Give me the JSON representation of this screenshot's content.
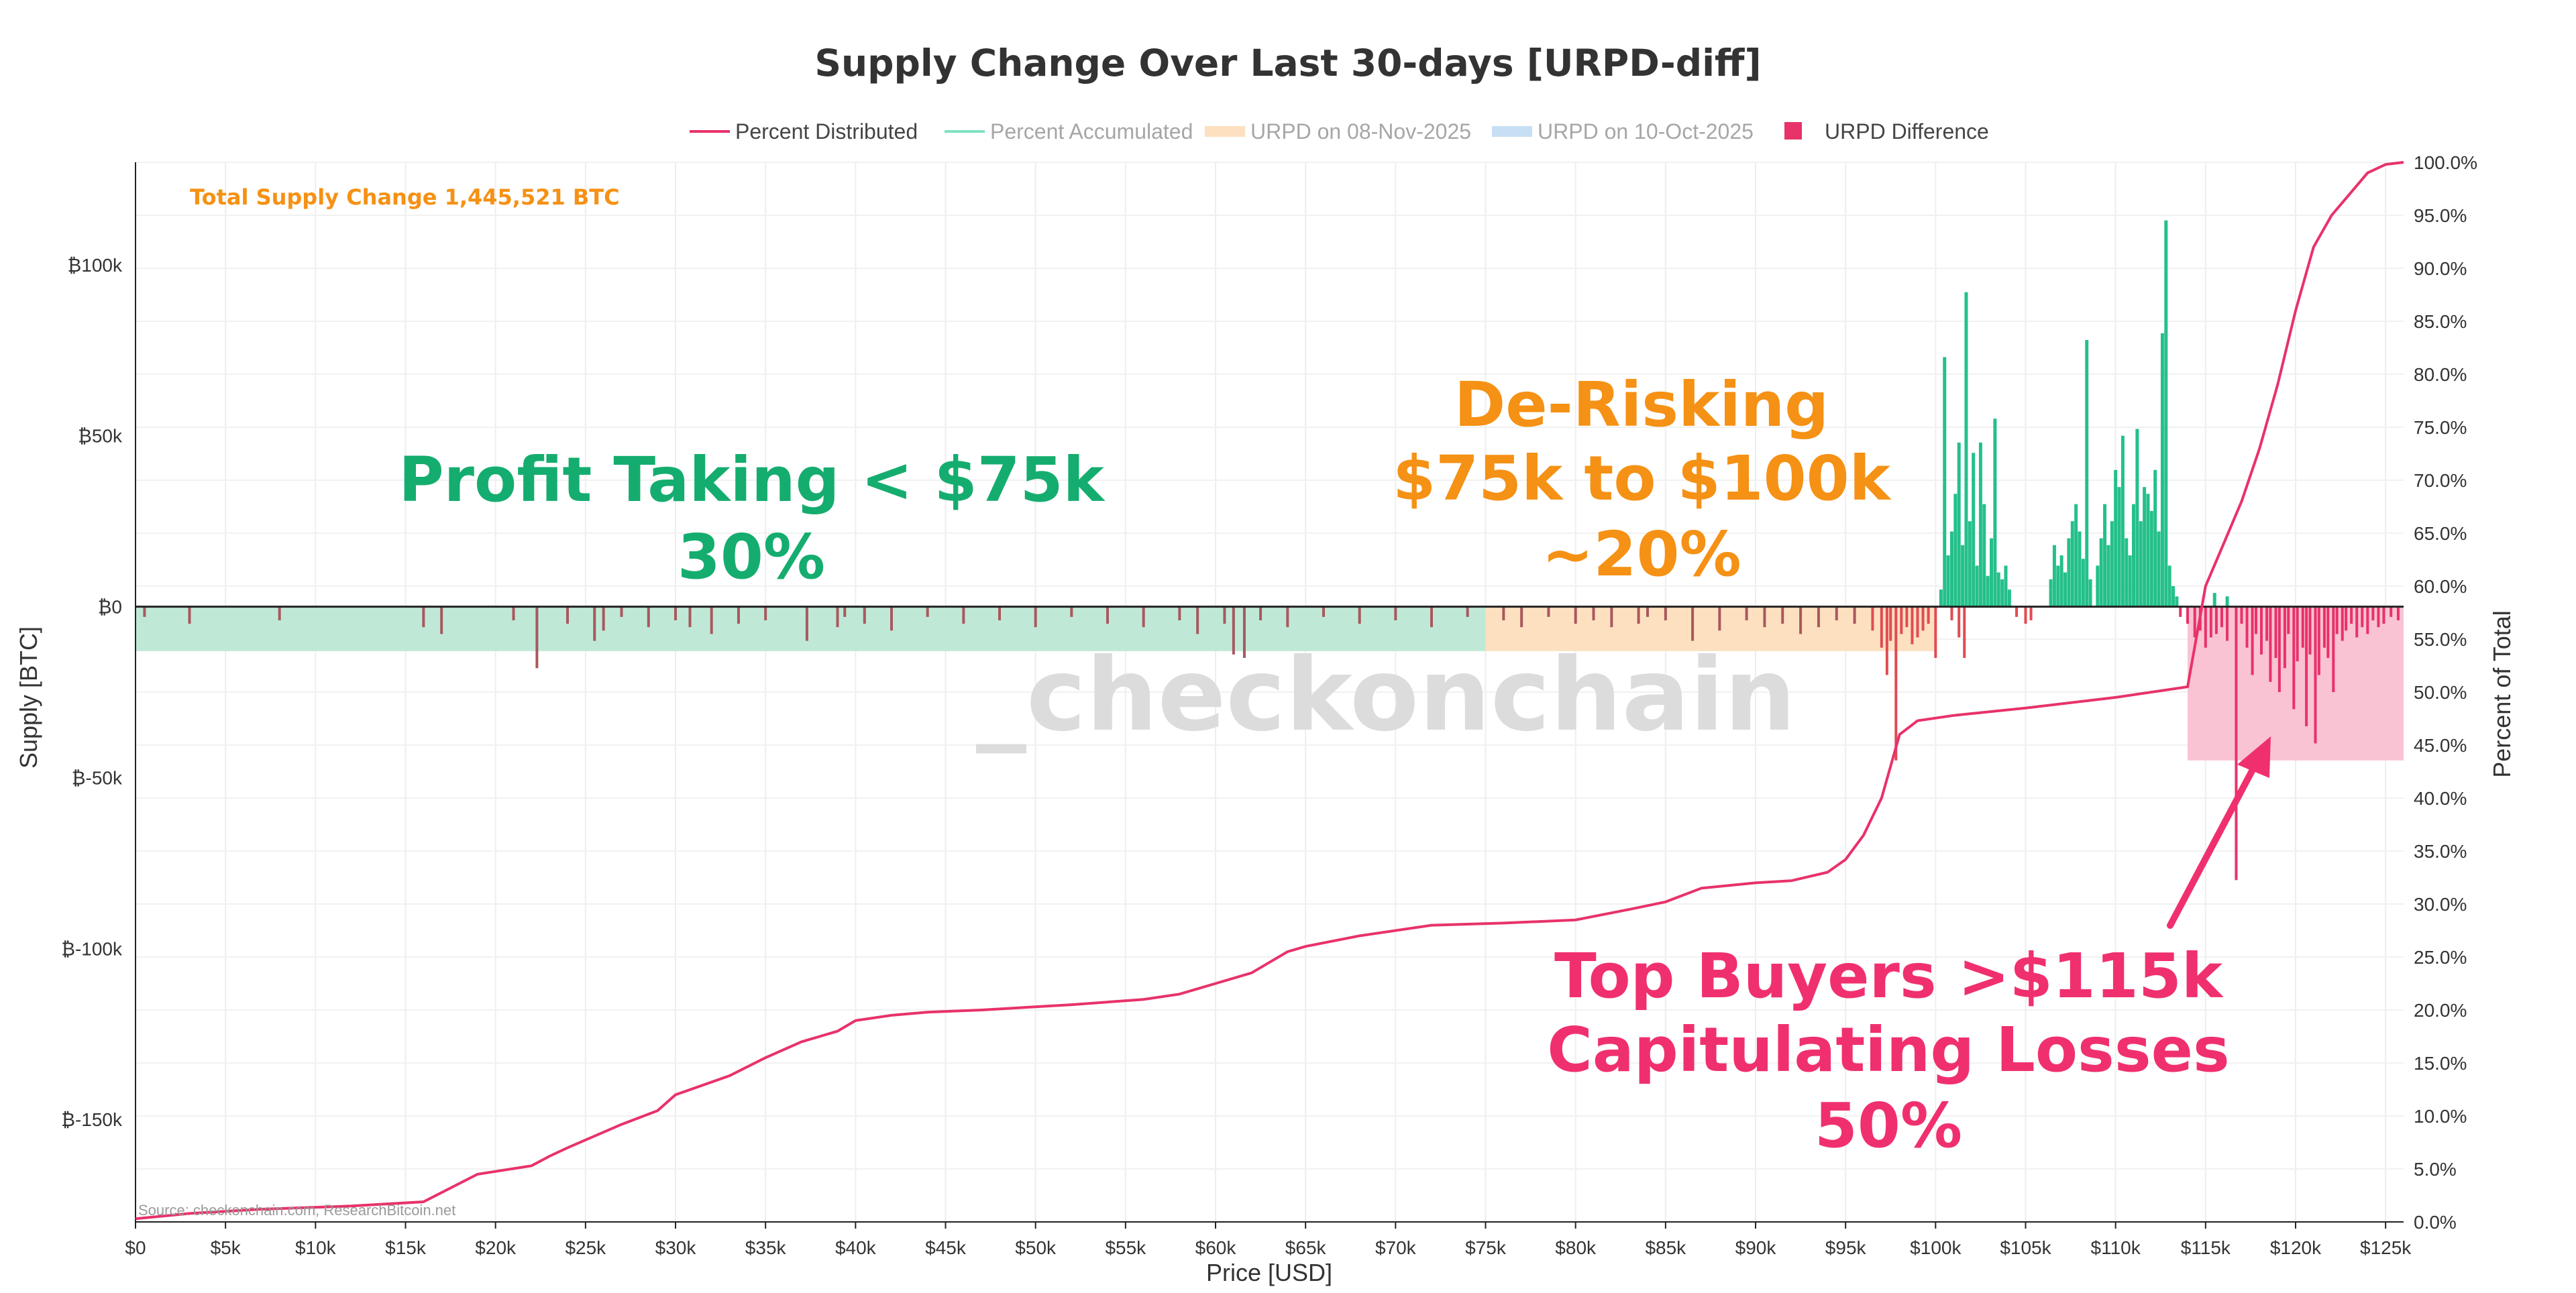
{
  "colors": {
    "distributed": "#e8326a",
    "accumulated": "#24c08a",
    "profit_band": "#bfe9d6",
    "derisk_band": "#fde0bf",
    "capitulation_band": "#f9c3d3",
    "negative_bar_low": "#a8585e",
    "orange_text": "#f59114",
    "green_text": "#15ad6f",
    "pink_text": "#f0306e"
  },
  "chart_data": {
    "type": "bar",
    "title": "Supply Change Over Last 30-days [URPD-diff]",
    "xlabel": "Price [USD]",
    "ylabel": "Supply [BTC]",
    "y2label": "Percent of Total",
    "xlim": [
      0,
      126000
    ],
    "ylim": [
      -180000,
      130000
    ],
    "y2lim": [
      0,
      100
    ],
    "x_ticks": [
      "$0",
      "$5k",
      "$10k",
      "$15k",
      "$20k",
      "$25k",
      "$30k",
      "$35k",
      "$40k",
      "$45k",
      "$50k",
      "$55k",
      "$60k",
      "$65k",
      "$70k",
      "$75k",
      "$80k",
      "$85k",
      "$90k",
      "$95k",
      "$100k",
      "$105k",
      "$110k",
      "$115k",
      "$120k",
      "$125k"
    ],
    "x_tick_values": [
      0,
      5000,
      10000,
      15000,
      20000,
      25000,
      30000,
      35000,
      40000,
      45000,
      50000,
      55000,
      60000,
      65000,
      70000,
      75000,
      80000,
      85000,
      90000,
      95000,
      100000,
      105000,
      110000,
      115000,
      120000,
      125000
    ],
    "y_ticks": [
      "₿100k",
      "₿50k",
      "₿0",
      "₿-50k",
      "₿-100k",
      "₿-150k"
    ],
    "y_tick_values": [
      100000,
      50000,
      0,
      -50000,
      -100000,
      -150000
    ],
    "y2_ticks": [
      "100.0%",
      "95.0%",
      "90.0%",
      "85.0%",
      "80.0%",
      "75.0%",
      "70.0%",
      "65.0%",
      "60.0%",
      "55.0%",
      "50.0%",
      "45.0%",
      "40.0%",
      "35.0%",
      "30.0%",
      "25.0%",
      "20.0%",
      "15.0%",
      "10.0%",
      "5.0%",
      "0.0%"
    ],
    "y2_tick_values": [
      100,
      95,
      90,
      85,
      80,
      75,
      70,
      65,
      60,
      55,
      50,
      45,
      40,
      35,
      30,
      25,
      20,
      15,
      10,
      5,
      0
    ],
    "legend": [
      "Percent Distributed",
      "Percent Accumulated",
      "URPD on 08-Nov-2025",
      "URPD on 10-Oct-2025",
      "URPD Difference"
    ],
    "annotation_total": "Total Supply Change 1,445,521 BTC",
    "bands": [
      {
        "name": "Percent Accumulated band",
        "x0": 0,
        "x1": 75000,
        "y0": -13000,
        "y1": 0
      },
      {
        "name": "De-risking band",
        "x0": 75000,
        "x1": 100000,
        "y0": -13000,
        "y1": 0
      },
      {
        "name": "Capitulation band",
        "x0": 114000,
        "x1": 126000,
        "y0": -45000,
        "y1": 0
      }
    ],
    "percent_distributed": {
      "x": [
        0,
        3000,
        7000,
        12000,
        16000,
        19000,
        22000,
        23000,
        24000,
        27000,
        29000,
        30000,
        33000,
        35000,
        37000,
        38000,
        39000,
        40000,
        42000,
        44000,
        47000,
        52000,
        56000,
        58000,
        60000,
        62000,
        64000,
        65000,
        68000,
        72000,
        76000,
        80000,
        83000,
        85000,
        87000,
        90000,
        92000,
        94000,
        95000,
        96000,
        97000,
        97500,
        98000,
        99000,
        101000,
        105000,
        110000,
        114000,
        115000,
        116000,
        117000,
        118000,
        119000,
        120000,
        121000,
        122000,
        123000,
        124000,
        125000,
        126000
      ],
      "y": [
        0.3,
        0.8,
        1.2,
        1.5,
        1.9,
        4.5,
        5.3,
        6.2,
        7.0,
        9.2,
        10.5,
        12.0,
        13.8,
        15.5,
        17.0,
        17.5,
        18.0,
        19.0,
        19.5,
        19.8,
        20.0,
        20.5,
        21.0,
        21.5,
        22.5,
        23.5,
        25.5,
        26.0,
        27.0,
        28.0,
        28.2,
        28.5,
        29.5,
        30.2,
        31.5,
        32.0,
        32.2,
        33.0,
        34.2,
        36.5,
        40.0,
        43.0,
        46.0,
        47.3,
        47.8,
        48.5,
        49.5,
        50.5,
        60.0,
        64.0,
        68.0,
        73.0,
        79.0,
        86.0,
        92.0,
        95.0,
        97.0,
        99.0,
        99.8,
        100.0
      ]
    },
    "accumulated_bars": [
      {
        "x": 100300,
        "v": 5000
      },
      {
        "x": 100500,
        "v": 73000
      },
      {
        "x": 100700,
        "v": 15000
      },
      {
        "x": 100900,
        "v": 22000
      },
      {
        "x": 101100,
        "v": 33000
      },
      {
        "x": 101300,
        "v": 48000
      },
      {
        "x": 101500,
        "v": 18000
      },
      {
        "x": 101700,
        "v": 92000
      },
      {
        "x": 101900,
        "v": 25000
      },
      {
        "x": 102100,
        "v": 45000
      },
      {
        "x": 102300,
        "v": 12000
      },
      {
        "x": 102500,
        "v": 48000
      },
      {
        "x": 102700,
        "v": 30000
      },
      {
        "x": 102900,
        "v": 9000
      },
      {
        "x": 103100,
        "v": 20000
      },
      {
        "x": 103300,
        "v": 55000
      },
      {
        "x": 103500,
        "v": 10000
      },
      {
        "x": 103700,
        "v": 8000
      },
      {
        "x": 103900,
        "v": 12000
      },
      {
        "x": 104100,
        "v": 5000
      },
      {
        "x": 106400,
        "v": 8000
      },
      {
        "x": 106600,
        "v": 18000
      },
      {
        "x": 106800,
        "v": 12000
      },
      {
        "x": 107000,
        "v": 15000
      },
      {
        "x": 107200,
        "v": 10000
      },
      {
        "x": 107400,
        "v": 20000
      },
      {
        "x": 107600,
        "v": 25000
      },
      {
        "x": 107800,
        "v": 30000
      },
      {
        "x": 108000,
        "v": 22000
      },
      {
        "x": 108200,
        "v": 14000
      },
      {
        "x": 108400,
        "v": 78000
      },
      {
        "x": 108600,
        "v": 8000
      },
      {
        "x": 109000,
        "v": 12000
      },
      {
        "x": 109200,
        "v": 20000
      },
      {
        "x": 109400,
        "v": 30000
      },
      {
        "x": 109600,
        "v": 18000
      },
      {
        "x": 109800,
        "v": 25000
      },
      {
        "x": 110000,
        "v": 40000
      },
      {
        "x": 110200,
        "v": 35000
      },
      {
        "x": 110400,
        "v": 50000
      },
      {
        "x": 110600,
        "v": 20000
      },
      {
        "x": 110800,
        "v": 15000
      },
      {
        "x": 111000,
        "v": 30000
      },
      {
        "x": 111200,
        "v": 52000
      },
      {
        "x": 111400,
        "v": 25000
      },
      {
        "x": 111600,
        "v": 35000
      },
      {
        "x": 111800,
        "v": 33000
      },
      {
        "x": 112000,
        "v": 28000
      },
      {
        "x": 112200,
        "v": 40000
      },
      {
        "x": 112400,
        "v": 22000
      },
      {
        "x": 112600,
        "v": 80000
      },
      {
        "x": 112800,
        "v": 113000
      },
      {
        "x": 113000,
        "v": 12000
      },
      {
        "x": 113200,
        "v": 6000
      },
      {
        "x": 113400,
        "v": 3000
      },
      {
        "x": 115500,
        "v": 4000
      },
      {
        "x": 116200,
        "v": 3000
      }
    ],
    "negative_bars": [
      {
        "x": 500,
        "v": -3000
      },
      {
        "x": 3000,
        "v": -5000
      },
      {
        "x": 8000,
        "v": -4000
      },
      {
        "x": 16000,
        "v": -6000
      },
      {
        "x": 17000,
        "v": -8000
      },
      {
        "x": 21000,
        "v": -4000
      },
      {
        "x": 22300,
        "v": -18000
      },
      {
        "x": 24000,
        "v": -5000
      },
      {
        "x": 25500,
        "v": -10000
      },
      {
        "x": 26000,
        "v": -7000
      },
      {
        "x": 27000,
        "v": -3000
      },
      {
        "x": 28500,
        "v": -6000
      },
      {
        "x": 30000,
        "v": -4000
      },
      {
        "x": 30800,
        "v": -6000
      },
      {
        "x": 32000,
        "v": -8000
      },
      {
        "x": 33500,
        "v": -5000
      },
      {
        "x": 35000,
        "v": -4000
      },
      {
        "x": 37300,
        "v": -10000
      },
      {
        "x": 39000,
        "v": -6000
      },
      {
        "x": 39400,
        "v": -3000
      },
      {
        "x": 40500,
        "v": -5000
      },
      {
        "x": 42000,
        "v": -7000
      },
      {
        "x": 44000,
        "v": -3000
      },
      {
        "x": 46000,
        "v": -5000
      },
      {
        "x": 48000,
        "v": -4000
      },
      {
        "x": 50000,
        "v": -6000
      },
      {
        "x": 52000,
        "v": -3000
      },
      {
        "x": 54000,
        "v": -5000
      },
      {
        "x": 56000,
        "v": -6000
      },
      {
        "x": 58000,
        "v": -4000
      },
      {
        "x": 59000,
        "v": -8000
      },
      {
        "x": 60500,
        "v": -5000
      },
      {
        "x": 61000,
        "v": -14000
      },
      {
        "x": 61600,
        "v": -15000
      },
      {
        "x": 62500,
        "v": -4000
      },
      {
        "x": 64000,
        "v": -6000
      },
      {
        "x": 66000,
        "v": -3000
      },
      {
        "x": 68000,
        "v": -5000
      },
      {
        "x": 70000,
        "v": -4000
      },
      {
        "x": 72000,
        "v": -6000
      },
      {
        "x": 74000,
        "v": -3000
      },
      {
        "x": 76000,
        "v": -4000
      },
      {
        "x": 77000,
        "v": -6000
      },
      {
        "x": 78500,
        "v": -3000
      },
      {
        "x": 80000,
        "v": -5000
      },
      {
        "x": 81000,
        "v": -4000
      },
      {
        "x": 82000,
        "v": -6000
      },
      {
        "x": 83500,
        "v": -5000
      },
      {
        "x": 84000,
        "v": -3000
      },
      {
        "x": 85000,
        "v": -4000
      },
      {
        "x": 86500,
        "v": -10000
      },
      {
        "x": 88000,
        "v": -7000
      },
      {
        "x": 89500,
        "v": -4000
      },
      {
        "x": 90500,
        "v": -6000
      },
      {
        "x": 91500,
        "v": -5000
      },
      {
        "x": 92500,
        "v": -8000
      },
      {
        "x": 93500,
        "v": -6000
      },
      {
        "x": 94500,
        "v": -4000
      },
      {
        "x": 95500,
        "v": -5000
      },
      {
        "x": 96500,
        "v": -7000
      },
      {
        "x": 97000,
        "v": -12000
      },
      {
        "x": 97300,
        "v": -20000
      },
      {
        "x": 97500,
        "v": -10000
      },
      {
        "x": 97800,
        "v": -45000
      },
      {
        "x": 98100,
        "v": -8000
      },
      {
        "x": 98400,
        "v": -6000
      },
      {
        "x": 98700,
        "v": -11000
      },
      {
        "x": 99000,
        "v": -9000
      },
      {
        "x": 99300,
        "v": -7000
      },
      {
        "x": 99600,
        "v": -5000
      },
      {
        "x": 100000,
        "v": -15000
      },
      {
        "x": 100900,
        "v": -4000
      },
      {
        "x": 101300,
        "v": -9000
      },
      {
        "x": 101600,
        "v": -15000
      },
      {
        "x": 104500,
        "v": -3000
      },
      {
        "x": 105000,
        "v": -5000
      },
      {
        "x": 105300,
        "v": -4000
      },
      {
        "x": 113600,
        "v": -3000
      },
      {
        "x": 114000,
        "v": -5000
      },
      {
        "x": 114400,
        "v": -9000
      },
      {
        "x": 114700,
        "v": -7000
      },
      {
        "x": 115000,
        "v": -12000
      },
      {
        "x": 115300,
        "v": -9000
      },
      {
        "x": 115600,
        "v": -8000
      },
      {
        "x": 115900,
        "v": -6000
      },
      {
        "x": 116200,
        "v": -10000
      },
      {
        "x": 116700,
        "v": -80000
      },
      {
        "x": 117000,
        "v": -5000
      },
      {
        "x": 117300,
        "v": -12000
      },
      {
        "x": 117600,
        "v": -20000
      },
      {
        "x": 117800,
        "v": -8000
      },
      {
        "x": 118100,
        "v": -14000
      },
      {
        "x": 118400,
        "v": -10000
      },
      {
        "x": 118600,
        "v": -22000
      },
      {
        "x": 118900,
        "v": -15000
      },
      {
        "x": 119100,
        "v": -25000
      },
      {
        "x": 119400,
        "v": -18000
      },
      {
        "x": 119600,
        "v": -8000
      },
      {
        "x": 119900,
        "v": -30000
      },
      {
        "x": 120100,
        "v": -16000
      },
      {
        "x": 120400,
        "v": -12000
      },
      {
        "x": 120600,
        "v": -35000
      },
      {
        "x": 120800,
        "v": -14000
      },
      {
        "x": 121100,
        "v": -40000
      },
      {
        "x": 121300,
        "v": -20000
      },
      {
        "x": 121600,
        "v": -12000
      },
      {
        "x": 121800,
        "v": -15000
      },
      {
        "x": 122100,
        "v": -25000
      },
      {
        "x": 122300,
        "v": -8000
      },
      {
        "x": 122600,
        "v": -10000
      },
      {
        "x": 122800,
        "v": -7000
      },
      {
        "x": 123100,
        "v": -5000
      },
      {
        "x": 123400,
        "v": -9000
      },
      {
        "x": 123700,
        "v": -6000
      },
      {
        "x": 124000,
        "v": -8000
      },
      {
        "x": 124300,
        "v": -4000
      },
      {
        "x": 124600,
        "v": -6000
      },
      {
        "x": 124900,
        "v": -5000
      },
      {
        "x": 125300,
        "v": -3000
      },
      {
        "x": 125700,
        "v": -4000
      }
    ],
    "annotations": {
      "profit_title": "Profit Taking < $75k",
      "profit_pct": "30%",
      "derisk_title": "De-Risking",
      "derisk_range": "$75k to $100k",
      "derisk_pct": "~20%",
      "top_title": "Top Buyers >$115k",
      "top_sub": "Capitulating Losses",
      "top_pct": "50%"
    },
    "watermark": "_checkonchain",
    "source": "Source: checkonchain.com, ResearchBitcoin.net"
  }
}
